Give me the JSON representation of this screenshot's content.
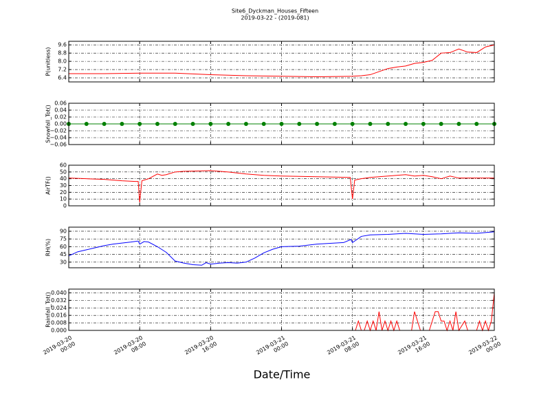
{
  "title": "Site6_Dyckman_Houses_Fifteen",
  "subtitle": "2019-03-22 - (2019-081)",
  "xlabel": "Date/Time",
  "xlim": [
    "2019-03-20 00:00",
    "2019-03-22 00:00"
  ],
  "xticks": [
    {
      "value": "2019-03-20 00:00",
      "label": "2019-03-20\n00:00"
    },
    {
      "value": "2019-03-20 08:00",
      "label": "2019-03-20\n08:00"
    },
    {
      "value": "2019-03-20 16:00",
      "label": "2019-03-20\n16:00"
    },
    {
      "value": "2019-03-21 00:00",
      "label": "2019-03-21\n00:00"
    },
    {
      "value": "2019-03-21 08:00",
      "label": "2019-03-21\n08:00"
    },
    {
      "value": "2019-03-21 16:00",
      "label": "2019-03-21\n16:00"
    },
    {
      "value": "2019-03-22 00:00",
      "label": "2019-03-22\n00:00"
    }
  ],
  "chart_data": [
    {
      "type": "line",
      "ylabel": "P(unitless)",
      "grid": true,
      "ylim": [
        6.0,
        9.95
      ],
      "yticks": [
        6.4,
        7.2,
        {
          "value": 8.0,
          "label": "8.0"
        },
        8.8,
        9.6
      ],
      "series": [
        {
          "color": "#ff0000",
          "x": [
            "2019-03-20 00:00",
            "2019-03-20 04:00",
            "2019-03-20 08:00",
            "2019-03-20 12:00",
            "2019-03-20 16:00",
            "2019-03-20 20:00",
            "2019-03-21 00:00",
            "2019-03-21 04:00",
            "2019-03-21 08:00",
            "2019-03-21 09:00",
            "2019-03-21 10:00",
            "2019-03-21 11:00",
            "2019-03-21 12:00",
            "2019-03-21 13:00",
            "2019-03-21 14:00",
            "2019-03-21 15:00",
            "2019-03-21 16:00",
            "2019-03-21 17:00",
            "2019-03-21 18:00",
            "2019-03-21 19:00",
            "2019-03-21 20:00",
            "2019-03-21 21:00",
            "2019-03-21 22:00",
            "2019-03-21 23:00",
            "2019-03-22 00:00"
          ],
          "values": [
            6.8,
            6.8,
            6.85,
            6.85,
            6.7,
            6.6,
            6.55,
            6.5,
            6.55,
            6.6,
            6.7,
            7.0,
            7.3,
            7.45,
            7.55,
            7.8,
            7.9,
            8.1,
            8.8,
            8.85,
            9.2,
            8.9,
            8.85,
            9.4,
            9.6
          ]
        }
      ]
    },
    {
      "type": "line",
      "ylabel": "Snowfall_Tot()",
      "grid": true,
      "marker": "o",
      "ylim": [
        -0.06,
        0.06
      ],
      "yticks": [
        {
          "value": -0.06,
          "label": "−0.06"
        },
        {
          "value": -0.04,
          "label": "−0.04"
        },
        {
          "value": -0.02,
          "label": "−0.02"
        },
        {
          "value": 0,
          "label": "0.00"
        },
        0.02,
        0.04,
        0.06
      ],
      "series": [
        {
          "color": "#008000",
          "x": [
            "2019-03-20 00:00",
            "2019-03-20 02:00",
            "2019-03-20 04:00",
            "2019-03-20 06:00",
            "2019-03-20 08:00",
            "2019-03-20 10:00",
            "2019-03-20 12:00",
            "2019-03-20 14:00",
            "2019-03-20 16:00",
            "2019-03-20 18:00",
            "2019-03-20 20:00",
            "2019-03-20 22:00",
            "2019-03-21 00:00",
            "2019-03-21 02:00",
            "2019-03-21 04:00",
            "2019-03-21 06:00",
            "2019-03-21 08:00",
            "2019-03-21 10:00",
            "2019-03-21 12:00",
            "2019-03-21 14:00",
            "2019-03-21 16:00",
            "2019-03-21 18:00",
            "2019-03-21 20:00",
            "2019-03-21 22:00",
            "2019-03-22 00:00"
          ],
          "values": [
            0,
            0,
            0,
            0,
            0,
            0,
            0,
            0,
            0,
            0,
            0,
            0,
            0,
            0,
            0,
            0,
            0,
            0,
            0,
            0,
            0,
            0,
            0,
            0,
            0
          ]
        }
      ]
    },
    {
      "type": "line",
      "ylabel": "AirTF()",
      "grid": true,
      "ylim": [
        0,
        60
      ],
      "yticks": [
        0,
        10,
        20,
        30,
        40,
        50,
        60
      ],
      "series": [
        {
          "color": "#ff0000",
          "x": [
            "2019-03-20 00:00",
            "2019-03-20 02:00",
            "2019-03-20 04:00",
            "2019-03-20 06:00",
            "2019-03-20 07:30",
            "2019-03-20 07:50",
            "2019-03-20 08:00",
            "2019-03-20 08:15",
            "2019-03-20 09:00",
            "2019-03-20 10:00",
            "2019-03-20 10:30",
            "2019-03-20 11:00",
            "2019-03-20 12:00",
            "2019-03-20 13:00",
            "2019-03-20 16:00",
            "2019-03-20 18:00",
            "2019-03-20 20:00",
            "2019-03-20 22:00",
            "2019-03-21 00:00",
            "2019-03-21 04:00",
            "2019-03-21 07:45",
            "2019-03-21 08:00",
            "2019-03-21 08:15",
            "2019-03-21 09:00",
            "2019-03-21 10:00",
            "2019-03-21 12:00",
            "2019-03-21 14:00",
            "2019-03-21 15:00",
            "2019-03-21 16:00",
            "2019-03-21 17:00",
            "2019-03-21 18:00",
            "2019-03-21 19:00",
            "2019-03-21 20:00",
            "2019-03-22 00:00"
          ],
          "values": [
            41,
            40,
            39,
            37,
            36,
            36,
            5,
            37,
            40,
            47,
            45,
            46,
            50,
            51,
            52,
            50,
            47,
            45,
            44,
            43,
            42,
            10,
            38,
            40,
            42,
            44,
            46,
            44,
            45,
            43,
            40,
            44,
            41,
            41
          ]
        }
      ]
    },
    {
      "type": "line",
      "ylabel": "RH(%)",
      "grid": true,
      "ylim": [
        19,
        98
      ],
      "yticks": [
        30,
        45,
        60,
        75,
        90
      ],
      "series": [
        {
          "color": "#0000ff",
          "x": [
            "2019-03-20 00:00",
            "2019-03-20 01:00",
            "2019-03-20 02:00",
            "2019-03-20 03:00",
            "2019-03-20 04:00",
            "2019-03-20 05:00",
            "2019-03-20 06:00",
            "2019-03-20 07:00",
            "2019-03-20 07:50",
            "2019-03-20 08:00",
            "2019-03-20 08:30",
            "2019-03-20 09:00",
            "2019-03-20 10:00",
            "2019-03-20 11:00",
            "2019-03-20 12:00",
            "2019-03-20 13:00",
            "2019-03-20 14:00",
            "2019-03-20 15:00",
            "2019-03-20 15:30",
            "2019-03-20 16:00",
            "2019-03-20 17:00",
            "2019-03-20 18:00",
            "2019-03-20 19:00",
            "2019-03-20 20:00",
            "2019-03-20 21:00",
            "2019-03-20 22:00",
            "2019-03-20 23:00",
            "2019-03-21 00:00",
            "2019-03-21 02:00",
            "2019-03-21 04:00",
            "2019-03-21 06:00",
            "2019-03-21 07:00",
            "2019-03-21 07:50",
            "2019-03-21 08:00",
            "2019-03-21 09:00",
            "2019-03-21 10:00",
            "2019-03-21 12:00",
            "2019-03-21 14:00",
            "2019-03-21 16:00",
            "2019-03-21 18:00",
            "2019-03-21 20:00",
            "2019-03-21 22:00",
            "2019-03-22 00:00"
          ],
          "values": [
            42,
            50,
            54,
            58,
            62,
            65,
            67,
            69,
            71,
            65,
            70,
            69,
            60,
            49,
            32,
            28,
            25,
            24,
            29,
            26,
            28,
            29,
            28,
            30,
            38,
            48,
            55,
            60,
            61,
            65,
            67,
            68,
            74,
            68,
            80,
            83,
            84,
            86,
            84,
            85,
            87,
            86,
            89
          ]
        }
      ]
    },
    {
      "type": "line",
      "ylabel": "Rainfall_Tot()",
      "grid": true,
      "ylim": [
        0,
        0.044
      ],
      "yticks": [
        {
          "value": 0,
          "label": "0.000"
        },
        0.008,
        0.016,
        0.024,
        0.032,
        {
          "value": 0.04,
          "label": "0.040"
        }
      ],
      "series": [
        {
          "color": "#ff0000",
          "x": [
            "2019-03-20 00:00",
            "2019-03-21 08:00",
            "2019-03-21 08:20",
            "2019-03-21 08:40",
            "2019-03-21 09:00",
            "2019-03-21 09:20",
            "2019-03-21 09:40",
            "2019-03-21 10:00",
            "2019-03-21 10:20",
            "2019-03-21 10:40",
            "2019-03-21 11:00",
            "2019-03-21 11:20",
            "2019-03-21 11:40",
            "2019-03-21 12:00",
            "2019-03-21 12:20",
            "2019-03-21 12:40",
            "2019-03-21 13:00",
            "2019-03-21 13:20",
            "2019-03-21 14:40",
            "2019-03-21 15:00",
            "2019-03-21 15:40",
            "2019-03-21 16:40",
            "2019-03-21 17:00",
            "2019-03-21 17:20",
            "2019-03-21 17:40",
            "2019-03-21 18:00",
            "2019-03-21 18:20",
            "2019-03-21 18:40",
            "2019-03-21 19:00",
            "2019-03-21 19:20",
            "2019-03-21 19:40",
            "2019-03-21 20:00",
            "2019-03-21 20:40",
            "2019-03-21 21:00",
            "2019-03-21 22:00",
            "2019-03-21 22:20",
            "2019-03-21 22:40",
            "2019-03-21 23:00",
            "2019-03-21 23:20",
            "2019-03-21 23:40",
            "2019-03-22 00:00"
          ],
          "values": [
            0,
            0,
            0,
            0.01,
            0,
            0,
            0.01,
            0,
            0.01,
            0,
            0.02,
            0,
            0.01,
            0,
            0.01,
            0,
            0.01,
            0,
            0,
            0.02,
            0,
            0,
            0.01,
            0.02,
            0.02,
            0.01,
            0.01,
            0,
            0.01,
            0,
            0.02,
            0,
            0.01,
            0,
            0,
            0.01,
            0,
            0.01,
            0,
            0.01,
            0.04
          ]
        }
      ]
    }
  ]
}
